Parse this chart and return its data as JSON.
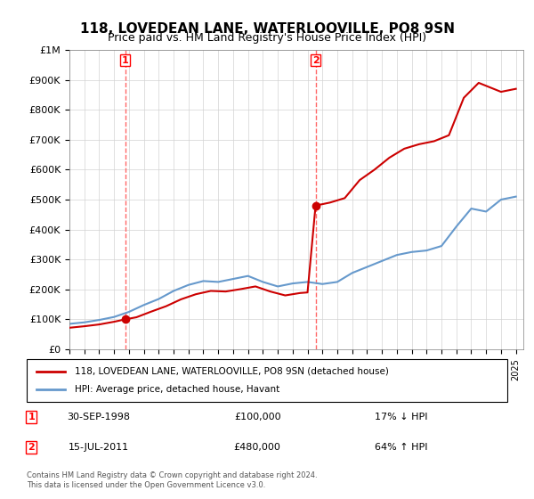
{
  "title": "118, LOVEDEAN LANE, WATERLOOVILLE, PO8 9SN",
  "subtitle": "Price paid vs. HM Land Registry's House Price Index (HPI)",
  "legend_property": "118, LOVEDEAN LANE, WATERLOOVILLE, PO8 9SN (detached house)",
  "legend_hpi": "HPI: Average price, detached house, Havant",
  "annotation1_label": "1",
  "annotation1_date": "30-SEP-1998",
  "annotation1_price": "£100,000",
  "annotation1_hpi": "17% ↓ HPI",
  "annotation2_label": "2",
  "annotation2_date": "15-JUL-2011",
  "annotation2_price": "£480,000",
  "annotation2_hpi": "64% ↑ HPI",
  "footer": "Contains HM Land Registry data © Crown copyright and database right 2024.\nThis data is licensed under the Open Government Licence v3.0.",
  "ylim": [
    0,
    1000000
  ],
  "yticks": [
    0,
    100000,
    200000,
    300000,
    400000,
    500000,
    600000,
    700000,
    800000,
    900000,
    1000000
  ],
  "ytick_labels": [
    "£0",
    "£100K",
    "£200K",
    "£300K",
    "£400K",
    "£500K",
    "£600K",
    "£700K",
    "£800K",
    "£900K",
    "£1M"
  ],
  "xlim_start": 1995.0,
  "xlim_end": 2025.5,
  "line_color_property": "#cc0000",
  "line_color_hpi": "#6699cc",
  "point1_x": 1998.75,
  "point1_y": 100000,
  "point2_x": 2011.54,
  "point2_y": 480000,
  "vline_color": "#ff6666",
  "hpi_x": [
    1995.0,
    1996.0,
    1997.0,
    1998.0,
    1999.0,
    2000.0,
    2001.0,
    2002.0,
    2003.0,
    2004.0,
    2005.0,
    2006.0,
    2007.0,
    2008.0,
    2009.0,
    2010.0,
    2011.0,
    2012.0,
    2013.0,
    2014.0,
    2015.0,
    2016.0,
    2017.0,
    2018.0,
    2019.0,
    2020.0,
    2021.0,
    2022.0,
    2023.0,
    2024.0,
    2025.0
  ],
  "hpi_y": [
    85000,
    90000,
    98000,
    108000,
    125000,
    148000,
    168000,
    195000,
    215000,
    228000,
    225000,
    235000,
    245000,
    225000,
    210000,
    220000,
    225000,
    218000,
    225000,
    255000,
    275000,
    295000,
    315000,
    325000,
    330000,
    345000,
    410000,
    470000,
    460000,
    500000,
    510000
  ],
  "prop_x": [
    1995.0,
    1996.0,
    1997.0,
    1998.0,
    1998.75,
    1999.5,
    2000.5,
    2001.5,
    2002.5,
    2003.5,
    2004.5,
    2005.5,
    2006.5,
    2007.5,
    2008.5,
    2009.5,
    2010.5,
    2011.0,
    2011.54,
    2012.5,
    2013.5,
    2014.5,
    2015.5,
    2016.5,
    2017.5,
    2018.5,
    2019.5,
    2020.5,
    2021.5,
    2022.5,
    2023.5,
    2024.0,
    2025.0
  ],
  "prop_y": [
    72000,
    77000,
    83000,
    92000,
    100000,
    107000,
    126000,
    144000,
    167000,
    184000,
    195000,
    193000,
    201000,
    210000,
    193000,
    180000,
    188000,
    190000,
    480000,
    490000,
    505000,
    565000,
    600000,
    640000,
    670000,
    685000,
    695000,
    715000,
    840000,
    890000,
    870000,
    860000,
    870000
  ]
}
